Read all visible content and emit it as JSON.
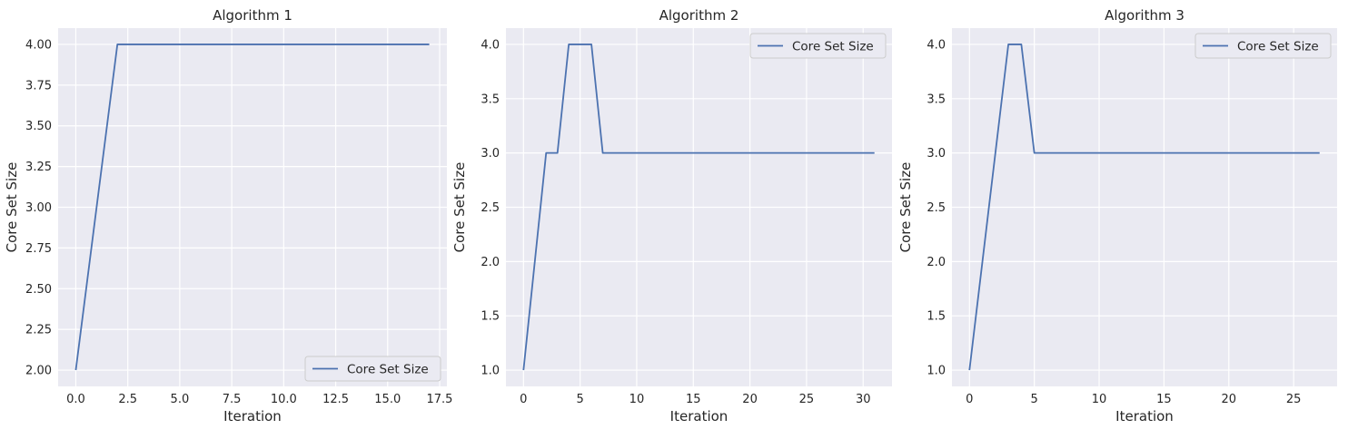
{
  "colors": {
    "series": "#4c72b0",
    "plot_background": "#eaeaf2",
    "grid": "#ffffff"
  },
  "chart_data": [
    {
      "type": "line",
      "title": "Algorithm 1",
      "xlabel": "Iteration",
      "ylabel": "Core Set Size",
      "grid": true,
      "legend": "lower-right",
      "xlim": [
        -0.85,
        17.85
      ],
      "ylim": [
        1.9,
        4.1
      ],
      "xticks": [
        0,
        2.5,
        5,
        7.5,
        10,
        12.5,
        15,
        17.5
      ],
      "xtick_labels": [
        "0.0",
        "2.5",
        "5.0",
        "7.5",
        "10.0",
        "12.5",
        "15.0",
        "17.5"
      ],
      "yticks": [
        2.0,
        2.25,
        2.5,
        2.75,
        3.0,
        3.25,
        3.5,
        3.75,
        4.0
      ],
      "ytick_labels": [
        "2.00",
        "2.25",
        "2.50",
        "2.75",
        "3.00",
        "3.25",
        "3.50",
        "3.75",
        "4.00"
      ],
      "series": [
        {
          "name": "Core Set Size",
          "x": [
            0,
            1,
            2,
            3,
            4,
            5,
            6,
            7,
            8,
            9,
            10,
            11,
            12,
            13,
            14,
            15,
            16,
            17
          ],
          "y": [
            2,
            3,
            4,
            4,
            4,
            4,
            4,
            4,
            4,
            4,
            4,
            4,
            4,
            4,
            4,
            4,
            4,
            4
          ]
        }
      ]
    },
    {
      "type": "line",
      "title": "Algorithm 2",
      "xlabel": "Iteration",
      "ylabel": "Core Set Size",
      "grid": true,
      "legend": "upper-right",
      "xlim": [
        -1.55,
        32.55
      ],
      "ylim": [
        0.85,
        4.15
      ],
      "xticks": [
        0,
        5,
        10,
        15,
        20,
        25,
        30
      ],
      "xtick_labels": [
        "0",
        "5",
        "10",
        "15",
        "20",
        "25",
        "30"
      ],
      "yticks": [
        1.0,
        1.5,
        2.0,
        2.5,
        3.0,
        3.5,
        4.0
      ],
      "ytick_labels": [
        "1.0",
        "1.5",
        "2.0",
        "2.5",
        "3.0",
        "3.5",
        "4.0"
      ],
      "series": [
        {
          "name": "Core Set Size",
          "x": [
            0,
            1,
            2,
            3,
            4,
            5,
            6,
            7,
            8,
            9,
            10,
            11,
            12,
            13,
            14,
            15,
            16,
            17,
            18,
            19,
            20,
            21,
            22,
            23,
            24,
            25,
            26,
            27,
            28,
            29,
            30,
            31
          ],
          "y": [
            1,
            2,
            3,
            3,
            4,
            4,
            4,
            3,
            3,
            3,
            3,
            3,
            3,
            3,
            3,
            3,
            3,
            3,
            3,
            3,
            3,
            3,
            3,
            3,
            3,
            3,
            3,
            3,
            3,
            3,
            3,
            3
          ]
        }
      ]
    },
    {
      "type": "line",
      "title": "Algorithm 3",
      "xlabel": "Iteration",
      "ylabel": "Core Set Size",
      "grid": true,
      "legend": "upper-right",
      "xlim": [
        -1.35,
        28.35
      ],
      "ylim": [
        0.85,
        4.15
      ],
      "xticks": [
        0,
        5,
        10,
        15,
        20,
        25
      ],
      "xtick_labels": [
        "0",
        "5",
        "10",
        "15",
        "20",
        "25"
      ],
      "yticks": [
        1.0,
        1.5,
        2.0,
        2.5,
        3.0,
        3.5,
        4.0
      ],
      "ytick_labels": [
        "1.0",
        "1.5",
        "2.0",
        "2.5",
        "3.0",
        "3.5",
        "4.0"
      ],
      "series": [
        {
          "name": "Core Set Size",
          "x": [
            0,
            1,
            2,
            3,
            4,
            5,
            6,
            7,
            8,
            9,
            10,
            11,
            12,
            13,
            14,
            15,
            16,
            17,
            18,
            19,
            20,
            21,
            22,
            23,
            24,
            25,
            26,
            27
          ],
          "y": [
            1,
            2,
            3,
            4,
            4,
            3,
            3,
            3,
            3,
            3,
            3,
            3,
            3,
            3,
            3,
            3,
            3,
            3,
            3,
            3,
            3,
            3,
            3,
            3,
            3,
            3,
            3,
            3
          ]
        }
      ]
    }
  ]
}
